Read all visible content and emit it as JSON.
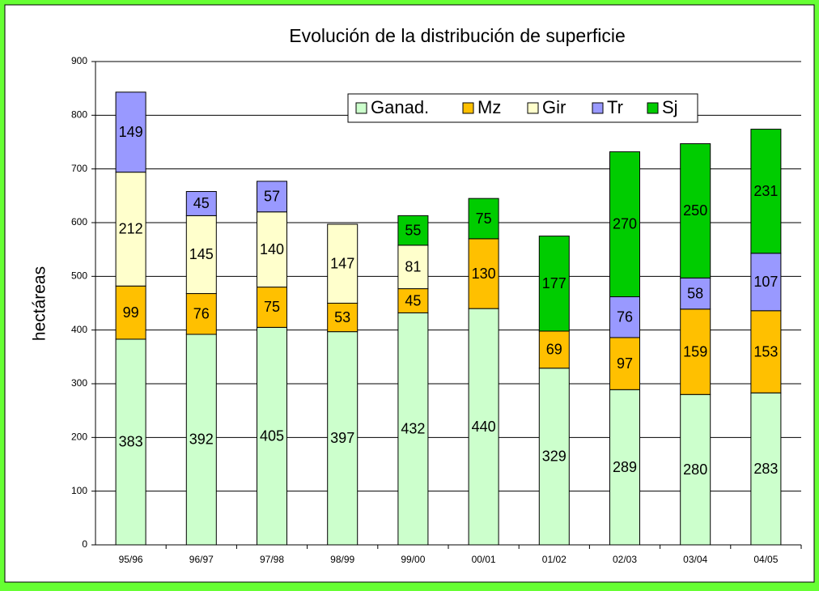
{
  "chart_data": {
    "type": "stacked_bar",
    "title": "Evolución de la distribución de superficie",
    "y_label": "hectáreas",
    "categories": [
      "95/96",
      "96/97",
      "97/98",
      "98/99",
      "99/00",
      "00/01",
      "01/02",
      "02/03",
      "03/04",
      "04/05"
    ],
    "series": [
      {
        "name": "Ganad.",
        "color": "#ccffcc",
        "values": [
          383,
          392,
          405,
          397,
          432,
          440,
          329,
          289,
          280,
          283
        ]
      },
      {
        "name": "Mz",
        "color": "#ffc000",
        "values": [
          99,
          76,
          75,
          53,
          45,
          130,
          69,
          97,
          159,
          153
        ]
      },
      {
        "name": "Gir",
        "color": "#ffffcc",
        "values": [
          212,
          145,
          140,
          147,
          81,
          null,
          null,
          null,
          null,
          null
        ]
      },
      {
        "name": "Tr",
        "color": "#9999ff",
        "values": [
          149,
          45,
          57,
          null,
          null,
          null,
          null,
          76,
          58,
          107
        ]
      },
      {
        "name": "Sj",
        "color": "#00cc00",
        "values": [
          null,
          null,
          null,
          null,
          55,
          75,
          177,
          270,
          250,
          231
        ]
      }
    ],
    "ylim": [
      0,
      900
    ],
    "yticks": [
      0,
      100,
      200,
      300,
      400,
      500,
      600,
      700,
      800,
      900
    ],
    "grid": true
  }
}
